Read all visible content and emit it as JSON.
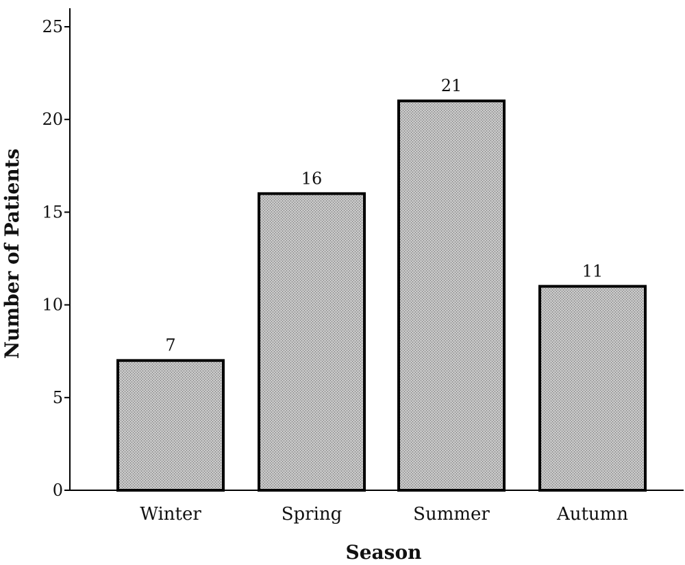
{
  "chart_data": {
    "type": "bar",
    "categories": [
      "Winter",
      "Spring",
      "Summer",
      "Autumn"
    ],
    "values": [
      7,
      16,
      21,
      11
    ],
    "data_labels": [
      "7",
      "16",
      "21",
      "11"
    ],
    "title": "",
    "xlabel": "Season",
    "ylabel": "Number of Patients",
    "ylim": [
      0,
      26
    ],
    "yticks": [
      0,
      5,
      10,
      15,
      20,
      25
    ],
    "ytick_labels": [
      "0",
      "5",
      "10",
      "15",
      "20",
      "25"
    ],
    "grid": false,
    "legend": "none",
    "bar_fill": "#c8c8c8",
    "bar_stroke": "#000000"
  }
}
